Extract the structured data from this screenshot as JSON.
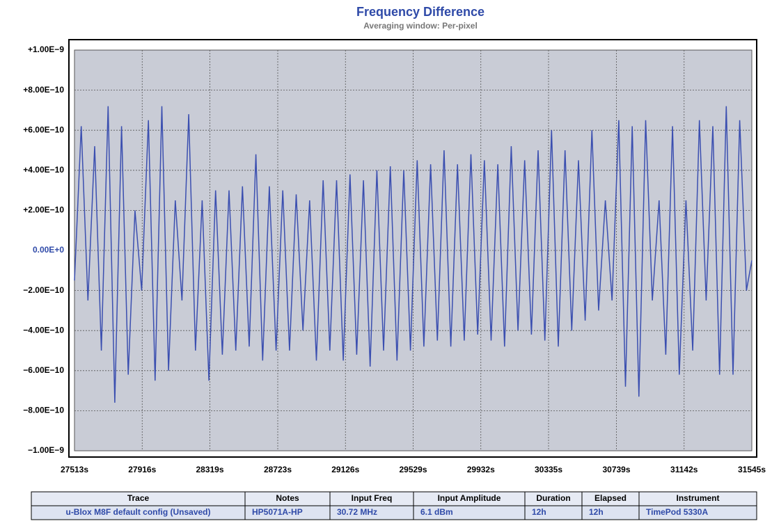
{
  "chart_data": {
    "type": "line",
    "title": "Frequency Difference",
    "subtitle": "Averaging window: Per-pixel",
    "x": [
      27513,
      27553,
      27593,
      27633,
      27673,
      27713,
      27753,
      27793,
      27833,
      27873,
      27913,
      27953,
      27993,
      28033,
      28073,
      28113,
      28153,
      28193,
      28233,
      28273,
      28313,
      28353,
      28393,
      28433,
      28473,
      28513,
      28553,
      28593,
      28633,
      28673,
      28713,
      28753,
      28793,
      28833,
      28873,
      28913,
      28953,
      28993,
      29033,
      29073,
      29113,
      29153,
      29193,
      29233,
      29273,
      29313,
      29353,
      29393,
      29433,
      29473,
      29513,
      29553,
      29593,
      29633,
      29673,
      29713,
      29753,
      29793,
      29833,
      29873,
      29913,
      29953,
      29993,
      30033,
      30073,
      30113,
      30153,
      30193,
      30233,
      30273,
      30313,
      30353,
      30393,
      30433,
      30473,
      30513,
      30553,
      30593,
      30633,
      30673,
      30713,
      30753,
      30793,
      30833,
      30873,
      30913,
      30953,
      30993,
      31033,
      31073,
      31113,
      31153,
      31193,
      31233,
      31273,
      31313,
      31353,
      31393,
      31433,
      31473,
      31513,
      31545
    ],
    "series": [
      {
        "name": "u-Blox M8F default config (Unsaved)",
        "color": "#3b4fb0",
        "values": [
          -1.5e-10,
          6.2e-10,
          -2.5e-10,
          5.2e-10,
          -5e-10,
          7.2e-10,
          -7.6e-10,
          6.2e-10,
          -6.2e-10,
          2e-10,
          -2e-10,
          6.5e-10,
          -6.5e-10,
          7.2e-10,
          -6e-10,
          2.5e-10,
          -2.5e-10,
          6.8e-10,
          -5e-10,
          2.5e-10,
          -6.5e-10,
          3e-10,
          -5.2e-10,
          3e-10,
          -5e-10,
          3.2e-10,
          -4.8e-10,
          4.8e-10,
          -5.5e-10,
          3.2e-10,
          -5e-10,
          3e-10,
          -5e-10,
          2.8e-10,
          -4e-10,
          2.5e-10,
          -5.5e-10,
          3.5e-10,
          -5e-10,
          3.5e-10,
          -5.5e-10,
          3.8e-10,
          -5.2e-10,
          3.5e-10,
          -5.8e-10,
          4e-10,
          -5e-10,
          4.2e-10,
          -5.5e-10,
          4e-10,
          -5e-10,
          4.5e-10,
          -4.8e-10,
          4.3e-10,
          -4.5e-10,
          5e-10,
          -4.8e-10,
          4.3e-10,
          -4.5e-10,
          4.8e-10,
          -4.2e-10,
          4.5e-10,
          -4.5e-10,
          4.3e-10,
          -4.8e-10,
          5.2e-10,
          -4e-10,
          4.5e-10,
          -4.2e-10,
          5e-10,
          -4.5e-10,
          6e-10,
          -4.8e-10,
          5e-10,
          -4e-10,
          4.5e-10,
          -3.5e-10,
          6e-10,
          -3e-10,
          2.5e-10,
          -2.5e-10,
          6.5e-10,
          -6.8e-10,
          6.2e-10,
          -7.3e-10,
          6.5e-10,
          -2.5e-10,
          2.5e-10,
          -5.2e-10,
          6.2e-10,
          -6.2e-10,
          2.5e-10,
          -5e-10,
          6.5e-10,
          -2.5e-10,
          6.2e-10,
          -6.2e-10,
          7.2e-10,
          -6.2e-10,
          6.5e-10,
          -2e-10,
          -5e-11
        ]
      }
    ],
    "xlim": [
      27513,
      31545
    ],
    "xticks": [
      {
        "value": 27513,
        "label": "27513s"
      },
      {
        "value": 27916,
        "label": "27916s"
      },
      {
        "value": 28319,
        "label": "28319s"
      },
      {
        "value": 28723,
        "label": "28723s"
      },
      {
        "value": 29126,
        "label": "29126s"
      },
      {
        "value": 29529,
        "label": "29529s"
      },
      {
        "value": 29932,
        "label": "29932s"
      },
      {
        "value": 30335,
        "label": "30335s"
      },
      {
        "value": 30739,
        "label": "30739s"
      },
      {
        "value": 31142,
        "label": "31142s"
      },
      {
        "value": 31545,
        "label": "31545s"
      }
    ],
    "ylim": [
      -1e-09,
      1e-09
    ],
    "yticks": [
      {
        "value": -1e-09,
        "label": "−1.00E−9"
      },
      {
        "value": -8e-10,
        "label": "−8.00E−10"
      },
      {
        "value": -6e-10,
        "label": "−6.00E−10"
      },
      {
        "value": -4e-10,
        "label": "−4.00E−10"
      },
      {
        "value": -2e-10,
        "label": "−2.00E−10"
      },
      {
        "value": 0,
        "label": "0.00E+0"
      },
      {
        "value": 2e-10,
        "label": "+2.00E−10"
      },
      {
        "value": 4e-10,
        "label": "+4.00E−10"
      },
      {
        "value": 6e-10,
        "label": "+6.00E−10"
      },
      {
        "value": 8e-10,
        "label": "+8.00E−10"
      },
      {
        "value": 1e-09,
        "label": "+1.00E−9"
      }
    ],
    "grid": true
  },
  "table": {
    "columns": [
      "Trace",
      "Notes",
      "Input Freq",
      "Input Amplitude",
      "Duration",
      "Elapsed",
      "Instrument"
    ],
    "rows": [
      [
        "u-Blox M8F default config (Unsaved)",
        "HP5071A-HP",
        "30.72 MHz",
        "6.1 dBm",
        "12h",
        "12h",
        "TimePod 5330A"
      ]
    ]
  }
}
